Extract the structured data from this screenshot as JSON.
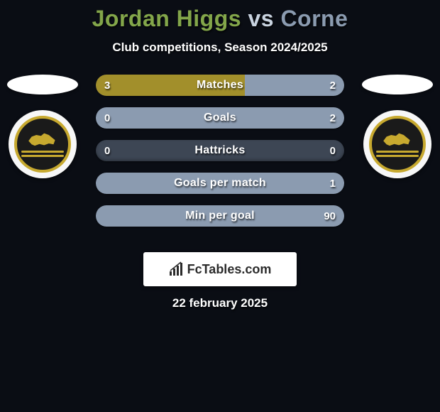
{
  "title": {
    "player1": "Jordan Higgs",
    "player2": "Corne",
    "player1_color": "#83a64a",
    "player2_color": "#8b9bb0",
    "vs_color": "#c9d3e0"
  },
  "subtitle": "Club competitions, Season 2024/2025",
  "date": "22 february 2025",
  "colors": {
    "background": "#0a0d14",
    "left_bar": "#a28f2b",
    "right_bar": "#8b9bb0",
    "empty_bar": "#3d4654",
    "text": "#ffffff"
  },
  "bars": [
    {
      "label": "Matches",
      "left": "3",
      "right": "2",
      "left_pct": 60,
      "right_pct": 40
    },
    {
      "label": "Goals",
      "left": "0",
      "right": "2",
      "left_pct": 0,
      "right_pct": 100
    },
    {
      "label": "Hattricks",
      "left": "0",
      "right": "0",
      "left_pct": 0,
      "right_pct": 0
    },
    {
      "label": "Goals per match",
      "left": "",
      "right": "1",
      "left_pct": 0,
      "right_pct": 100
    },
    {
      "label": "Min per goal",
      "left": "",
      "right": "90",
      "left_pct": 0,
      "right_pct": 100
    }
  ],
  "brand": "FcTables.com",
  "crest": {
    "badge_bg": "#1a1a1a",
    "badge_accent": "#c7a92f"
  }
}
